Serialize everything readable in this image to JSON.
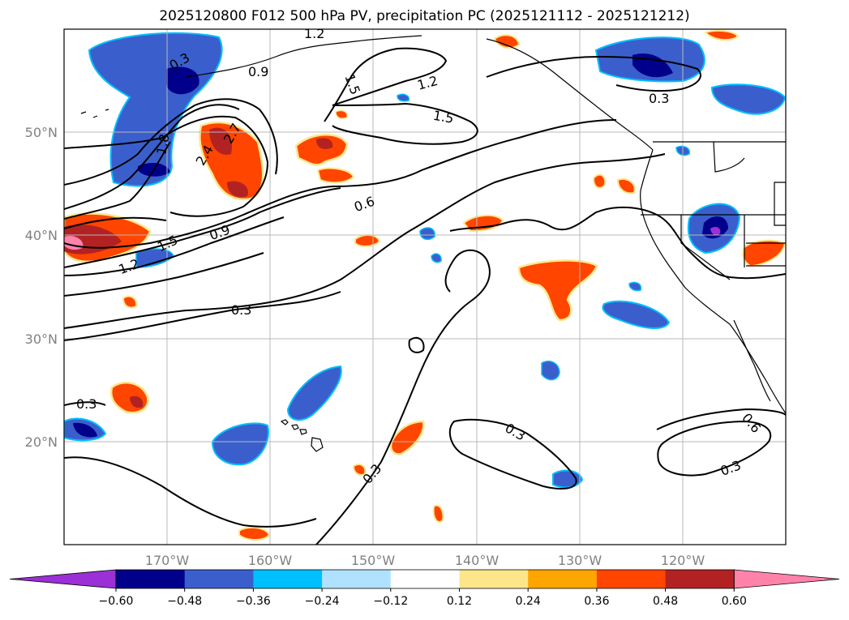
{
  "title": "2025120800 F012 500 hPa PV, precipitation PC (2025121112 - 2025121212)",
  "map": {
    "lon_range": [
      -180,
      -110
    ],
    "lat_range": [
      10,
      60
    ],
    "lat_labels": [
      "50°N",
      "40°N",
      "30°N",
      "20°N"
    ],
    "lon_labels": [
      "170°W",
      "160°W",
      "150°W",
      "140°W",
      "130°W",
      "120°W"
    ],
    "contour_labels": [
      "0.3",
      "1.2",
      "0.9",
      "1.5",
      "1.2",
      "1.5",
      "0.3",
      "1.8",
      "2.4",
      "2.7",
      "0.6",
      "0.9",
      "1.5",
      "1.2",
      "0.3",
      "0.3",
      "0.3",
      "0.3",
      "0.6",
      "0.3"
    ]
  },
  "colorbar": {
    "ticks": [
      "−0.60",
      "−0.48",
      "−0.36",
      "−0.24",
      "−0.12",
      "0.12",
      "0.24",
      "0.36",
      "0.48",
      "0.60"
    ],
    "colors": [
      "#9b30d6",
      "#00008b",
      "#3a5fcd",
      "#00bfff",
      "#b0e2ff",
      "#ffffff",
      "#fde68a",
      "#ffa500",
      "#ff4500",
      "#b22222",
      "#ff82ab"
    ]
  },
  "colors": {
    "pos_low": "#fde68a",
    "pos_mid": "#ffa500",
    "pos_high": "#ff4500",
    "pos_max": "#b22222",
    "pos_ext": "#ff82ab",
    "neg_low": "#b0e2ff",
    "neg_mid": "#00bfff",
    "neg_high": "#3a5fcd",
    "neg_max": "#00008b",
    "neg_ext": "#9b30d6"
  }
}
